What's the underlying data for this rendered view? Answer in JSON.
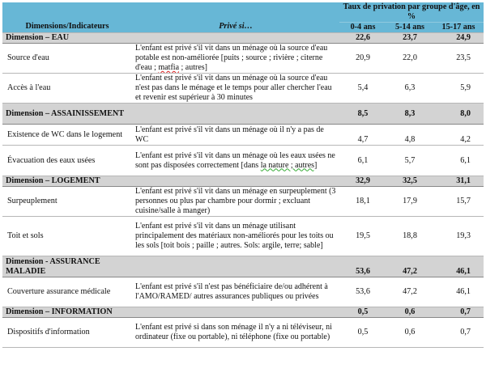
{
  "header": {
    "dimensions_label": "Dimensions/Indicateurs",
    "prive_label": "Privé si…",
    "group_title": "Taux de privation par groupe d'âge, en %",
    "age_groups": [
      "0-4 ans",
      "5-14 ans",
      "15-17 ans"
    ]
  },
  "sections": [
    {
      "title": "Dimension – EAU",
      "values": [
        "22,6",
        "23,7",
        "24,9"
      ],
      "rows": [
        {
          "indicator": "Source d'eau",
          "desc_pre": "L'enfant est privé s'il vit dans un ménage où la source d'eau potable est non-améliorée [puits ; source ; rivière ; citerne d'eau ; ",
          "desc_mark": "matfia",
          "desc_post": " ; autres]",
          "values": [
            "20,9",
            "22,0",
            "23,5"
          ]
        },
        {
          "indicator": "Accès à l'eau",
          "desc": "L'enfant est privé s'il vit dans un ménage où la source d'eau n'est pas dans le ménage et le temps pour aller chercher l'eau et revenir est supérieur à 30 minutes",
          "values": [
            "5,4",
            "6,3",
            "5,9"
          ]
        }
      ]
    },
    {
      "title": "Dimension – ASSAINISSEMENT",
      "values": [
        "8,5",
        "8,3",
        "8,0"
      ],
      "rows": [
        {
          "indicator": "Existence de WC dans le logement",
          "desc": "L'enfant est privé s'il vit dans un ménage où il n'y a pas de WC",
          "values": [
            "4,7",
            "4,8",
            "4,2"
          ]
        },
        {
          "indicator": "Évacuation des eaux usées",
          "desc_pre": "L'enfant est privé s'il vit dans un ménage où les eaux usées ne sont pas disposées correctement [dans ",
          "desc_mark": "la nature ; autres]",
          "desc_post": "",
          "values": [
            "6,1",
            "5,7",
            "6,1"
          ]
        }
      ]
    },
    {
      "title": "Dimension – LOGEMENT",
      "values": [
        "32,9",
        "32,5",
        "31,1"
      ],
      "rows": [
        {
          "indicator": "Surpeuplement",
          "desc": "L'enfant est privé s'il vit dans un ménage en surpeuplement (3 personnes ou plus par chambre pour dormir ; excluant cuisine/salle à manger)",
          "values": [
            "18,1",
            "17,9",
            "15,7"
          ]
        },
        {
          "indicator": "Toit et sols",
          "desc": "L'enfant est privé s'il vit dans un ménage utilisant principalement des matériaux non-améliorés pour les toits ou les sols [toit bois ; paille ; autres. Sols: argile, terre; sable]",
          "values": [
            "19,5",
            "18,8",
            "19,3"
          ]
        }
      ]
    },
    {
      "title": "Dimension - ASSURANCE MALADIE",
      "values": [
        "53,6",
        "47,2",
        "46,1"
      ],
      "rows": [
        {
          "indicator": "Couverture assurance médicale",
          "desc": "L'enfant est privé s'il n'est pas bénéficiaire de/ou adhérent à l'AMO/RAMED/ autres assurances publiques ou privées",
          "values": [
            "53,6",
            "47,2",
            "46,1"
          ]
        }
      ]
    },
    {
      "title": "Dimension – INFORMATION",
      "values": [
        "0,5",
        "0,6",
        "0,7"
      ],
      "rows": [
        {
          "indicator": "Dispositifs d'information",
          "desc": "L'enfant est privé si dans son ménage il n'y a ni téléviseur, ni ordinateur (fixe ou portable), ni téléphone (fixe ou portable)",
          "values": [
            "0,5",
            "0,6",
            "0,7"
          ]
        }
      ]
    }
  ]
}
